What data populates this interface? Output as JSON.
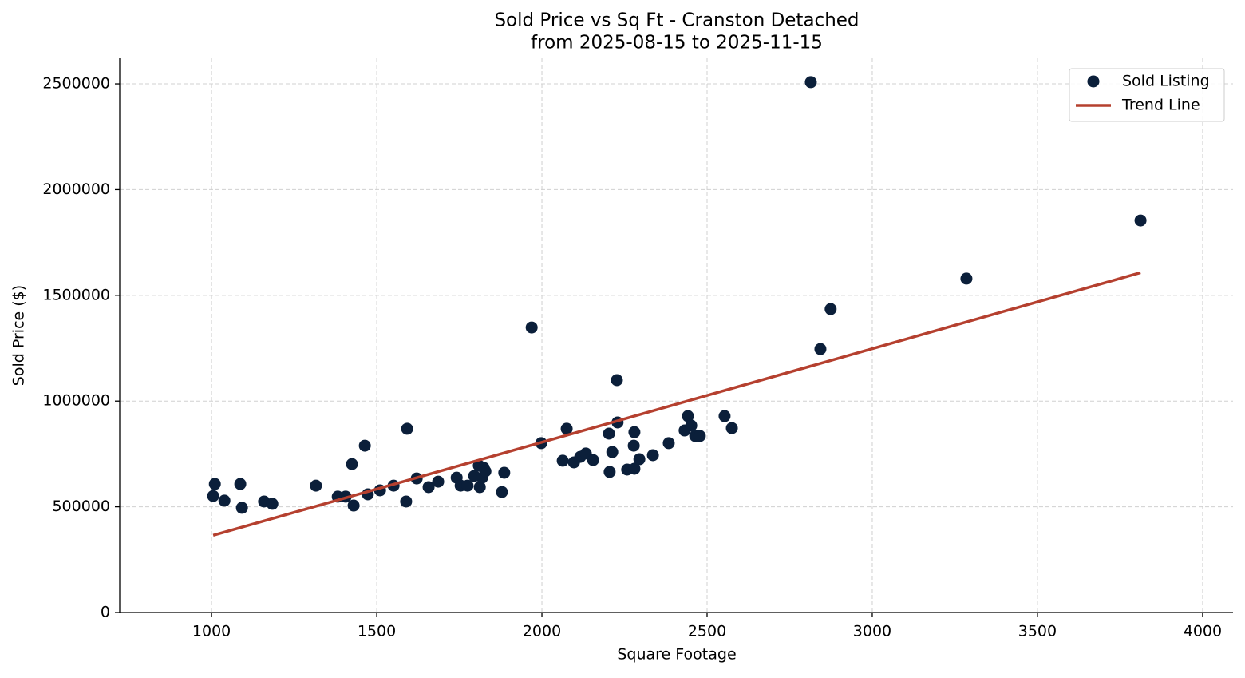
{
  "chart_data": {
    "type": "scatter",
    "title": "Sold Price vs Sq Ft - Cranston Detached",
    "subtitle": "from 2025-08-15 to 2025-11-15",
    "x_label": "Square Footage",
    "y_label": "Sold Price ($)",
    "xlim": [
      722,
      4092
    ],
    "ylim": [
      0,
      2621000
    ],
    "xticks": [
      1000,
      1500,
      2000,
      2500,
      3000,
      3500,
      4000
    ],
    "yticks": [
      0,
      500000,
      1000000,
      1500000,
      2000000,
      2500000
    ],
    "grid": true,
    "legend": "upper right",
    "series": [
      {
        "name": "Sold Listing",
        "type": "scatter",
        "color": "#0b1f3a",
        "x": [
          1005,
          1010,
          1039,
          1087,
          1092,
          1159,
          1184,
          1316,
          1382,
          1406,
          1425,
          1430,
          1464,
          1473,
          1510,
          1551,
          1589,
          1592,
          1621,
          1657,
          1686,
          1742,
          1754,
          1775,
          1795,
          1809,
          1812,
          1819,
          1824,
          1829,
          1879,
          1886,
          1969,
          1998,
          2063,
          2075,
          2097,
          2116,
          2133,
          2155,
          2203,
          2205,
          2213,
          2227,
          2229,
          2258,
          2278,
          2280,
          2280,
          2295,
          2336,
          2384,
          2432,
          2442,
          2452,
          2464,
          2478,
          2553,
          2575,
          2814,
          2843,
          2874,
          3285,
          3812
        ],
        "values": [
          551000,
          608000,
          529000,
          608000,
          495000,
          525000,
          514000,
          600000,
          548000,
          548000,
          702000,
          506000,
          789000,
          559000,
          578000,
          600000,
          525000,
          869000,
          634000,
          593000,
          619000,
          638000,
          600000,
          600000,
          646000,
          695000,
          593000,
          638000,
          684000,
          668000,
          570000,
          661000,
          1348000,
          801000,
          718000,
          869000,
          710000,
          736000,
          752000,
          721000,
          846000,
          665000,
          759000,
          1099000,
          899000,
          676000,
          789000,
          680000,
          853000,
          725000,
          744000,
          801000,
          861000,
          929000,
          884000,
          835000,
          835000,
          929000,
          872000,
          2508000,
          1246000,
          1435000,
          1579000,
          1854000
        ]
      },
      {
        "name": "Trend Line",
        "type": "line",
        "color": "#b5402f",
        "x": [
          1005,
          3812
        ],
        "values": [
          365000,
          1607000
        ]
      }
    ]
  }
}
